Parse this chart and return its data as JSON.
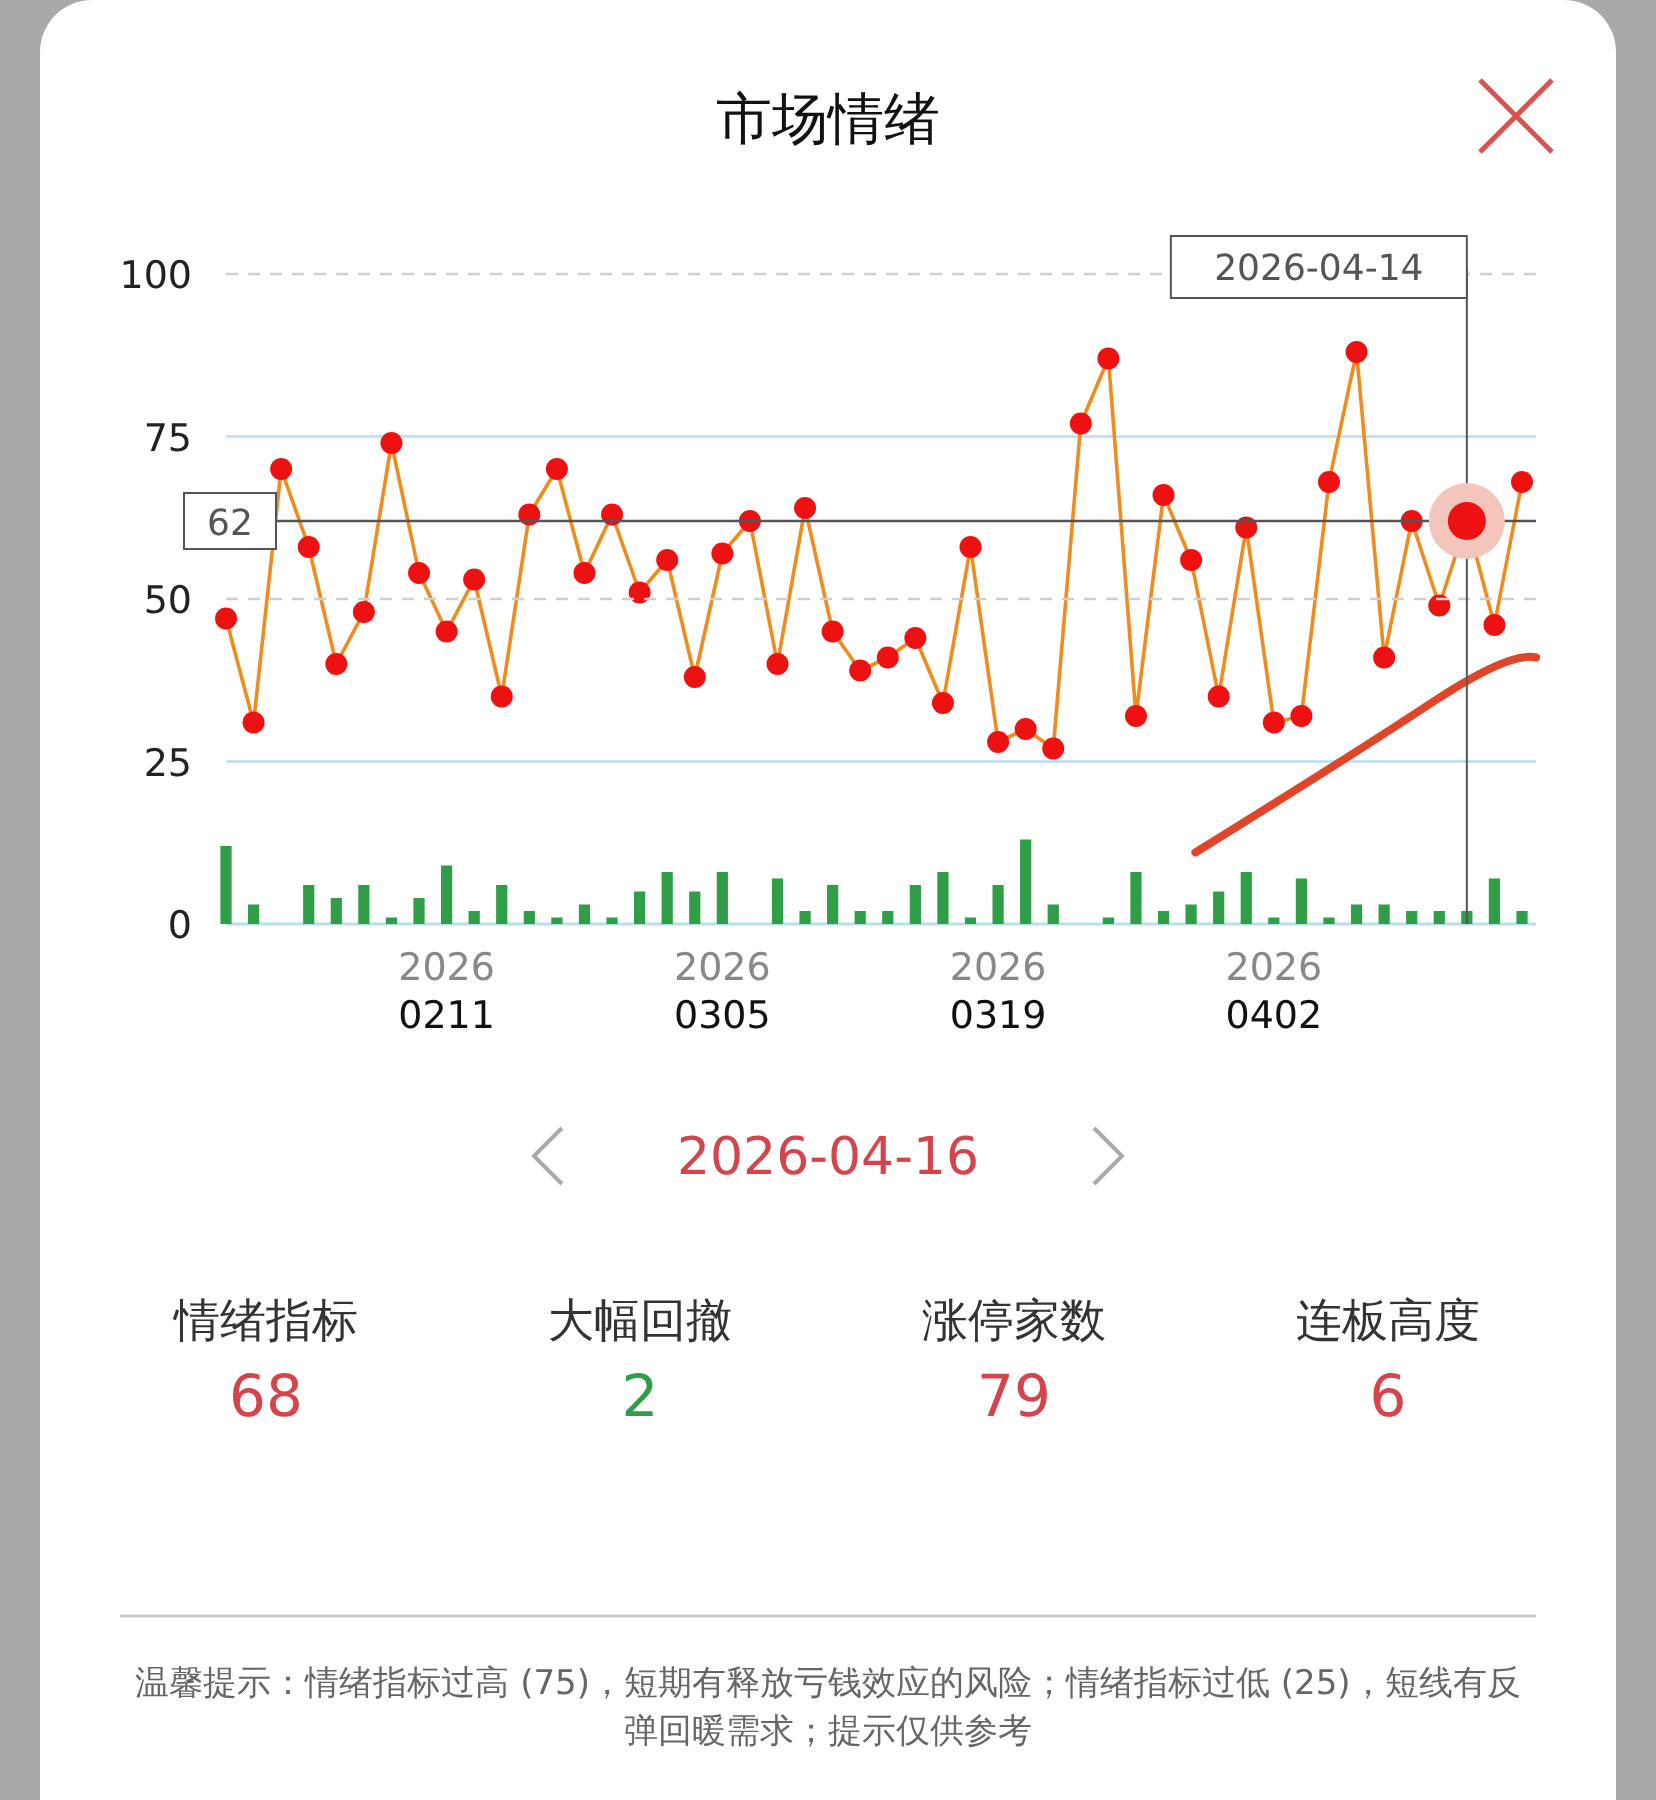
{
  "chart_data": [
    {
      "type": "line",
      "title": "市场情绪",
      "categories": [
        null,
        null,
        null,
        null,
        null,
        null,
        null,
        null,
        "2026\n0211",
        null,
        null,
        null,
        null,
        null,
        null,
        null,
        null,
        null,
        "2026\n0305",
        null,
        null,
        null,
        null,
        null,
        null,
        null,
        null,
        null,
        "2026\n0319",
        null,
        null,
        null,
        null,
        null,
        null,
        null,
        null,
        null,
        "2026\n0402",
        null,
        null,
        null,
        null,
        null,
        null,
        null,
        null,
        null
      ],
      "series": [
        {
          "type": "bar",
          "color": "#2f9e47",
          "values": [
            12,
            3,
            0,
            6,
            4,
            6,
            1,
            4,
            9,
            2,
            6,
            2,
            1,
            3,
            1,
            5,
            8,
            5,
            8,
            0,
            7,
            2,
            6,
            2,
            2,
            6,
            8,
            1,
            6,
            13,
            3,
            0,
            1,
            8,
            2,
            3,
            5,
            8,
            1,
            7,
            1,
            3,
            3,
            2,
            2,
            2,
            7,
            2
          ]
        },
        {
          "color": "#f08c1e",
          "colors": [
            "#ee1111",
            "#ee1111",
            "#ee1111",
            "#ee1111",
            "#ee1111",
            "#ee1111",
            "#ee1111",
            "#ee1111",
            "#ee1111",
            "#ee1111",
            "#ee1111",
            "#ee1111",
            "#ee1111",
            "#ee1111",
            "#ee1111",
            "#ee1111",
            "#ee1111",
            "#ee1111",
            "#ee1111",
            "#ee1111",
            "#ee1111",
            "#ee1111",
            "#ee1111",
            "#ee1111",
            "#ee1111",
            "#ee1111",
            "#ee1111",
            "#ee1111",
            "#ee1111",
            "#ee1111",
            "#ee1111",
            "#ee1111",
            "#ee1111",
            "#ee1111",
            "#ee1111",
            "#ee1111",
            "#ee1111",
            "#ee1111",
            "#ee1111",
            "#ee1111",
            "#ee1111",
            "#ee1111",
            "#ee1111",
            "#ee1111",
            "#ee1111",
            "#ee1111",
            "#ee1111",
            "#ee1111"
          ],
          "values": [
            47,
            31,
            70,
            58,
            40,
            48,
            74,
            54,
            45,
            53,
            35,
            63,
            70,
            54,
            63,
            51,
            56,
            38,
            57,
            62,
            40,
            64,
            45,
            39,
            41,
            44,
            34,
            58,
            28,
            30,
            27,
            77,
            87,
            32,
            66,
            56,
            35,
            61,
            31,
            32,
            68,
            88,
            41,
            62,
            49,
            62,
            46,
            68
          ]
        }
      ],
      "ylim": [
        0,
        100
      ],
      "yticks": [
        0,
        25,
        50,
        75,
        100
      ],
      "grid": "y",
      "marker": "circle",
      "line_style": "solid",
      "ref_lines": [
        {
          "axis": "y",
          "value": 100,
          "label": null,
          "color": "#cfcfcf",
          "line_style": "dashed"
        },
        {
          "axis": "y",
          "value": 50,
          "label": null,
          "color": "#cfcfcf",
          "line_style": "dashed"
        },
        {
          "axis": "y",
          "value": 62,
          "label": "62",
          "color": "#555555"
        }
      ],
      "annotations": [
        "2026-04-14"
      ]
    },
    {
      "type": "other",
      "title": "2026-04-16",
      "categories": [
        "情绪指标",
        "大幅回撤",
        "涨停家数",
        "连板高度"
      ],
      "values": [
        68,
        2,
        79,
        6
      ],
      "data_labels": true,
      "colors": [
        "#d5434b",
        "#2f9e47",
        "#d5434b",
        "#d5434b"
      ],
      "annotations": [
        "温馨提示：情绪指标过高 (75)，短期有释放亏钱效应的风险；情绪指标过低 (25)，短线有反弹回暖需求；提示仅供参考"
      ]
    }
  ]
}
